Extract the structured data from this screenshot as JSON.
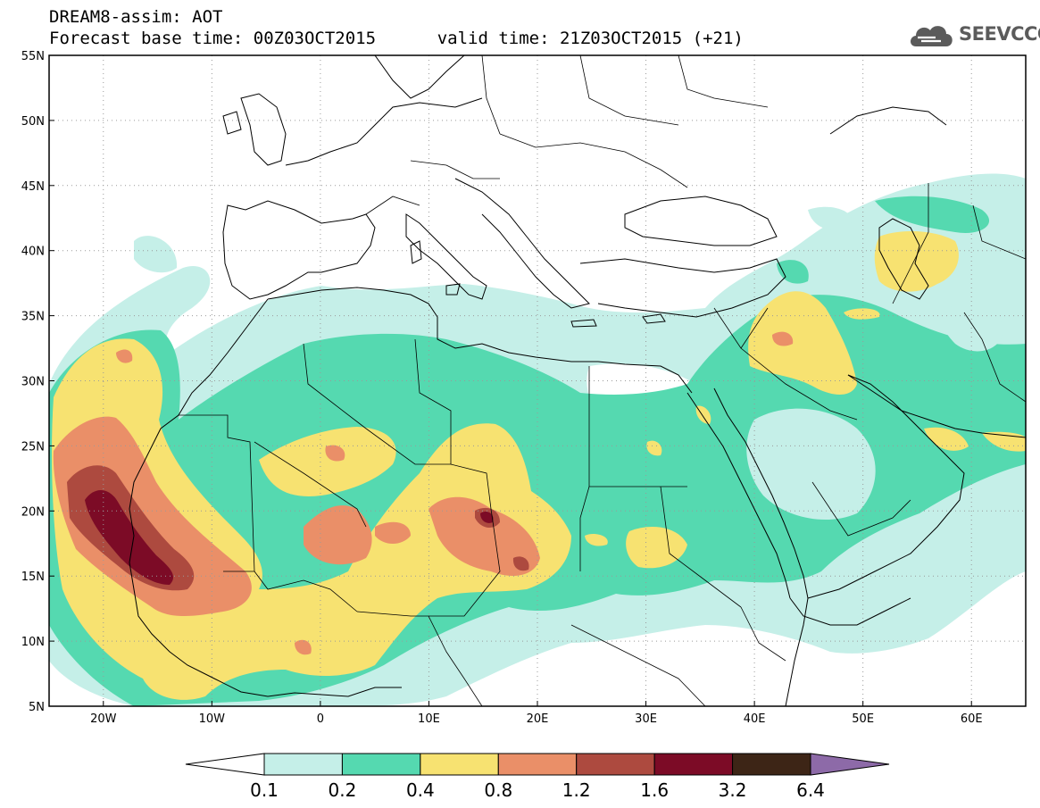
{
  "header": {
    "title": "DREAM8-assim: AOT",
    "base_time": "Forecast base time: 00Z03OCT2015",
    "valid_time": "valid time: 21Z03OCT2015 (+21)",
    "logo_text": "SEEVCCC",
    "logo_icon": "cloud-icon"
  },
  "map": {
    "lon_range": [
      -25,
      65
    ],
    "lat_range": [
      5,
      55
    ],
    "gridlines": "dotted",
    "lat_ticks": [
      {
        "value": 55,
        "label": "55N"
      },
      {
        "value": 50,
        "label": "50N"
      },
      {
        "value": 45,
        "label": "45N"
      },
      {
        "value": 40,
        "label": "40N"
      },
      {
        "value": 35,
        "label": "35N"
      },
      {
        "value": 30,
        "label": "30N"
      },
      {
        "value": 25,
        "label": "25N"
      },
      {
        "value": 20,
        "label": "20N"
      },
      {
        "value": 15,
        "label": "15N"
      },
      {
        "value": 10,
        "label": "10N"
      },
      {
        "value": 5,
        "label": "5N"
      }
    ],
    "lon_ticks": [
      {
        "value": -20,
        "label": "20W"
      },
      {
        "value": -10,
        "label": "10W"
      },
      {
        "value": 0,
        "label": "0"
      },
      {
        "value": 10,
        "label": "10E"
      },
      {
        "value": 20,
        "label": "20E"
      },
      {
        "value": 30,
        "label": "30E"
      },
      {
        "value": 40,
        "label": "40E"
      },
      {
        "value": 50,
        "label": "50E"
      },
      {
        "value": 60,
        "label": "60E"
      }
    ]
  },
  "colorbar": {
    "levels": [
      "0.1",
      "0.2",
      "0.4",
      "0.8",
      "1.2",
      "1.6",
      "3.2",
      "6.4"
    ],
    "colors": [
      "#ffffff",
      "#c5efe8",
      "#55d9b0",
      "#f7e271",
      "#ea8f68",
      "#ad4a3f",
      "#7c0b26",
      "#3d2516",
      "#8d6aa8"
    ]
  }
}
